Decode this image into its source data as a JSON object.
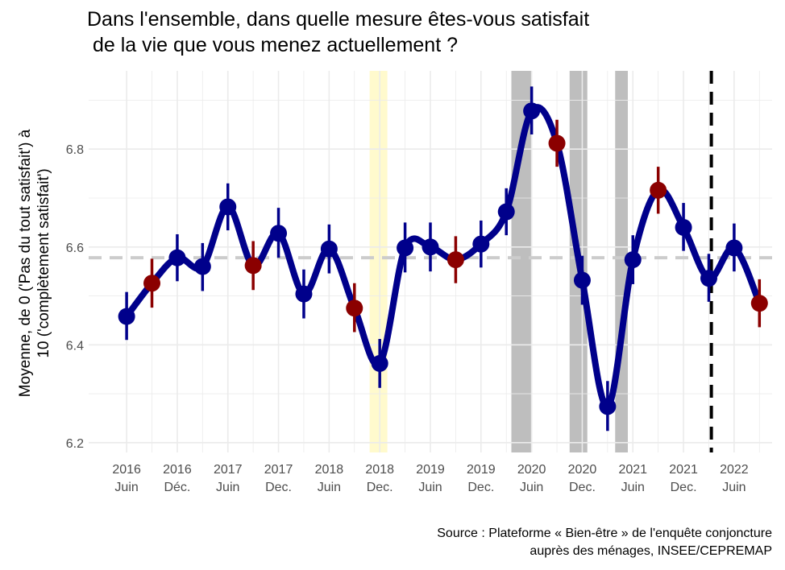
{
  "title_lines": [
    "Dans l'ensemble, dans quelle mesure êtes-vous satisfait",
    " de la vie que vous menez actuellement ?"
  ],
  "caption_lines": [
    "Source : Plateforme « Bien-être » de l'enquête conjoncture",
    "auprès des ménages, INSEE/CEPREMAP"
  ],
  "chart_data": {
    "type": "line",
    "ylabel_lines": [
      "Moyenne, de 0 ('Pas du tout satisfait') à",
      "10 ('complètement satisfait')"
    ],
    "ylim": [
      6.18,
      6.96
    ],
    "yticks": [
      6.2,
      6.4,
      6.6,
      6.8
    ],
    "xlim": [
      -1.5,
      25.5
    ],
    "xticks": [
      {
        "x": 0,
        "top": "2016",
        "bottom": "Juin"
      },
      {
        "x": 2,
        "top": "2016",
        "bottom": "Déc."
      },
      {
        "x": 4,
        "top": "2017",
        "bottom": "Juin"
      },
      {
        "x": 6,
        "top": "2017",
        "bottom": "Dec."
      },
      {
        "x": 8,
        "top": "2018",
        "bottom": "Juin"
      },
      {
        "x": 10,
        "top": "2018",
        "bottom": "Dec."
      },
      {
        "x": 12,
        "top": "2019",
        "bottom": "Juin"
      },
      {
        "x": 14,
        "top": "2019",
        "bottom": "Dec."
      },
      {
        "x": 16,
        "top": "2020",
        "bottom": "Juin"
      },
      {
        "x": 18,
        "top": "2020",
        "bottom": "Dec."
      },
      {
        "x": 20,
        "top": "2021",
        "bottom": "Juin"
      },
      {
        "x": 22,
        "top": "2021",
        "bottom": "Dec."
      },
      {
        "x": 24,
        "top": "2022",
        "bottom": "Juin"
      }
    ],
    "series": [
      {
        "points": [
          {
            "x": 0,
            "y": 6.458,
            "lo": 6.41,
            "hi": 6.508,
            "highlight": false
          },
          {
            "x": 1,
            "y": 6.526,
            "lo": 6.476,
            "hi": 6.576,
            "highlight": true
          },
          {
            "x": 2,
            "y": 6.578,
            "lo": 6.53,
            "hi": 6.626,
            "highlight": false
          },
          {
            "x": 3,
            "y": 6.56,
            "lo": 6.51,
            "hi": 6.608,
            "highlight": false
          },
          {
            "x": 4,
            "y": 6.682,
            "lo": 6.634,
            "hi": 6.73,
            "highlight": false
          },
          {
            "x": 5,
            "y": 6.562,
            "lo": 6.512,
            "hi": 6.612,
            "highlight": true
          },
          {
            "x": 6,
            "y": 6.628,
            "lo": 6.578,
            "hi": 6.68,
            "highlight": false
          },
          {
            "x": 7,
            "y": 6.504,
            "lo": 6.454,
            "hi": 6.554,
            "highlight": false
          },
          {
            "x": 8,
            "y": 6.596,
            "lo": 6.546,
            "hi": 6.646,
            "highlight": false
          },
          {
            "x": 9,
            "y": 6.475,
            "lo": 6.426,
            "hi": 6.526,
            "highlight": true
          },
          {
            "x": 10,
            "y": 6.362,
            "lo": 6.312,
            "hi": 6.412,
            "highlight": false
          },
          {
            "x": 11,
            "y": 6.598,
            "lo": 6.548,
            "hi": 6.65,
            "highlight": false
          },
          {
            "x": 12,
            "y": 6.6,
            "lo": 6.55,
            "hi": 6.65,
            "highlight": false
          },
          {
            "x": 13,
            "y": 6.574,
            "lo": 6.526,
            "hi": 6.622,
            "highlight": true
          },
          {
            "x": 14,
            "y": 6.606,
            "lo": 6.558,
            "hi": 6.654,
            "highlight": false
          },
          {
            "x": 15,
            "y": 6.672,
            "lo": 6.624,
            "hi": 6.72,
            "highlight": false
          },
          {
            "x": 16,
            "y": 6.878,
            "lo": 6.83,
            "hi": 6.928,
            "highlight": false
          },
          {
            "x": 17,
            "y": 6.812,
            "lo": 6.764,
            "hi": 6.86,
            "highlight": true
          },
          {
            "x": 18,
            "y": 6.532,
            "lo": 6.482,
            "hi": 6.582,
            "highlight": false
          },
          {
            "x": 19,
            "y": 6.274,
            "lo": 6.224,
            "hi": 6.326,
            "highlight": false
          },
          {
            "x": 20,
            "y": 6.574,
            "lo": 6.524,
            "hi": 6.624,
            "highlight": false
          },
          {
            "x": 21,
            "y": 6.716,
            "lo": 6.668,
            "hi": 6.764,
            "highlight": true
          },
          {
            "x": 22,
            "y": 6.64,
            "lo": 6.592,
            "hi": 6.69,
            "highlight": false
          },
          {
            "x": 23,
            "y": 6.536,
            "lo": 6.488,
            "hi": 6.586,
            "highlight": false
          },
          {
            "x": 24,
            "y": 6.598,
            "lo": 6.55,
            "hi": 6.648,
            "highlight": false
          },
          {
            "x": 25,
            "y": 6.485,
            "lo": 6.436,
            "hi": 6.534,
            "highlight": true
          }
        ]
      }
    ],
    "reference_line": {
      "y": 6.578,
      "style": "dashed",
      "color": "#cccccc"
    },
    "vertical_line": {
      "x": 23.1,
      "style": "dashed",
      "color": "#000000"
    },
    "shaded_bands": [
      {
        "x0": 9.6,
        "x1": 10.3,
        "color": "#fffacd"
      },
      {
        "x0": 15.2,
        "x1": 16.0,
        "color": "#bebebe"
      },
      {
        "x0": 17.5,
        "x1": 18.2,
        "color": "#bebebe"
      },
      {
        "x0": 19.3,
        "x1": 19.8,
        "color": "#bebebe"
      }
    ],
    "colors": {
      "line": "#00008b",
      "point": "#00008b",
      "highlight": "#8b0000",
      "grid": "#ebebeb"
    },
    "grid": true,
    "legend": "none"
  }
}
